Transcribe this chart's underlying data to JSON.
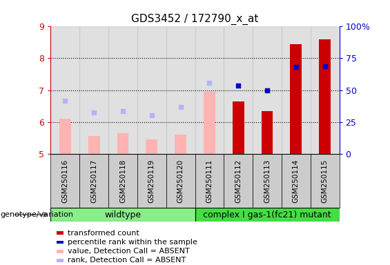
{
  "title": "GDS3452 / 172790_x_at",
  "samples": [
    "GSM250116",
    "GSM250117",
    "GSM250118",
    "GSM250119",
    "GSM250120",
    "GSM250111",
    "GSM250112",
    "GSM250113",
    "GSM250114",
    "GSM250115"
  ],
  "group_labels": [
    "wildtype",
    "complex I gas-1(fc21) mutant"
  ],
  "wildtype_indices": [
    0,
    1,
    2,
    3,
    4
  ],
  "mutant_indices": [
    5,
    6,
    7,
    8,
    9
  ],
  "absent_bar_indices": [
    0,
    1,
    2,
    3,
    4,
    5
  ],
  "absent_bar_vals": [
    6.1,
    5.55,
    5.65,
    5.45,
    5.6,
    6.95
  ],
  "present_bar_indices": [
    6,
    7,
    8,
    9
  ],
  "present_bar_vals": [
    6.65,
    6.35,
    8.45,
    8.6
  ],
  "absent_dot_indices": [
    0,
    1,
    2,
    3,
    4,
    5
  ],
  "absent_dot_vals": [
    6.66,
    6.3,
    6.35,
    6.22,
    6.47,
    7.24
  ],
  "present_dot_indices": [
    6,
    7,
    8,
    9
  ],
  "present_dot_vals": [
    7.15,
    7.0,
    7.73,
    7.76
  ],
  "ylim": [
    5,
    9
  ],
  "yticks": [
    5,
    6,
    7,
    8,
    9
  ],
  "y2lim": [
    0,
    100
  ],
  "y2ticks": [
    0,
    25,
    50,
    75,
    100
  ],
  "y2ticklabels": [
    "0",
    "25",
    "50",
    "75",
    "100%"
  ],
  "bar_color_present": "#cc0000",
  "bar_color_absent": "#ffb3b3",
  "dot_color_present": "#0000cc",
  "dot_color_absent": "#b3b3ff",
  "bar_width": 0.4,
  "col_bg": "#cccccc",
  "group_bg_wildtype": "#88ee88",
  "group_bg_mutant": "#44dd44",
  "legend_items": [
    {
      "color": "#cc0000",
      "label": "transformed count"
    },
    {
      "color": "#0000cc",
      "label": "percentile rank within the sample"
    },
    {
      "color": "#ffb3b3",
      "label": "value, Detection Call = ABSENT"
    },
    {
      "color": "#b3b3ff",
      "label": "rank, Detection Call = ABSENT"
    }
  ],
  "genotype_label": "genotype/variation"
}
